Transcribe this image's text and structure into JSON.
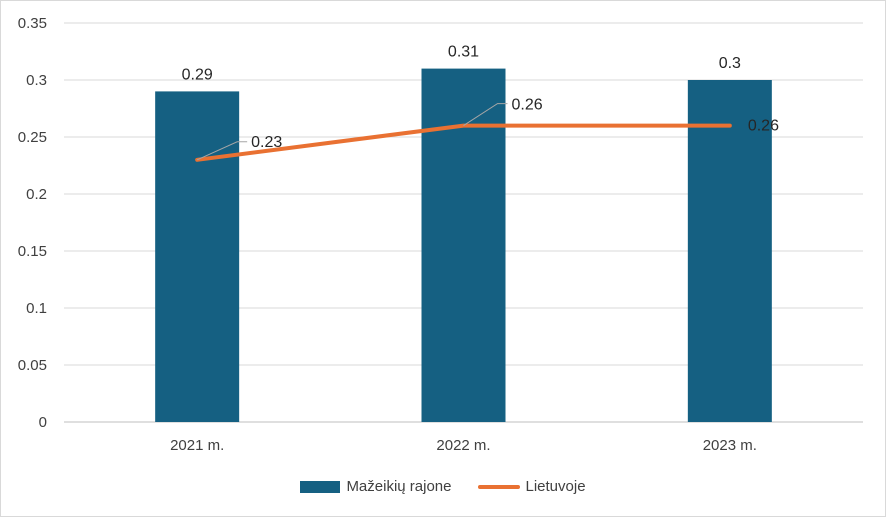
{
  "chart_data": {
    "type": "bar",
    "categories": [
      "2021 m.",
      "2022 m.",
      "2023 m."
    ],
    "ylim": [
      0,
      0.35
    ],
    "yticks": [
      "0",
      "0.05",
      "0.1",
      "0.15",
      "0.2",
      "0.25",
      "0.3",
      "0.35"
    ],
    "grid": true,
    "legend_position": "bottom",
    "series": [
      {
        "name": "Mažeikių rajone",
        "kind": "bar",
        "color": "#156082",
        "values": [
          0.29,
          0.31,
          0.3
        ],
        "labels": [
          "0.29",
          "0.31",
          "0.3"
        ]
      },
      {
        "name": "Lietuvoje",
        "kind": "line",
        "color": "#E97132",
        "values": [
          0.23,
          0.26,
          0.26
        ],
        "labels": [
          "0.23",
          "0.26",
          "0.26"
        ]
      }
    ]
  },
  "colors": {
    "grid": "#d9d9d9",
    "axis": "#bfbfbf",
    "tick_text": "#404040",
    "label_text": "#262626",
    "leader": "#a6a6a6"
  }
}
